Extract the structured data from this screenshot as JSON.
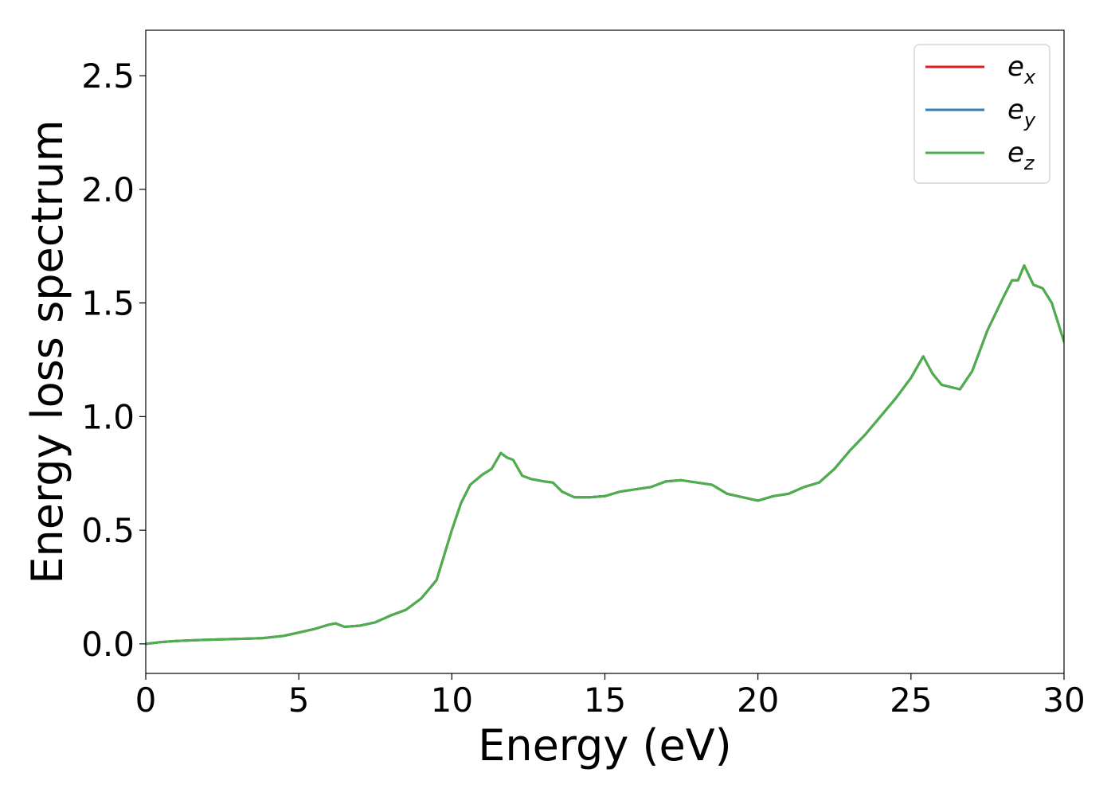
{
  "chart_data": {
    "type": "line",
    "xlabel": "Energy (eV)",
    "ylabel": "Energy loss spectrum",
    "xlim": [
      0,
      30
    ],
    "ylim": [
      -0.13,
      2.7
    ],
    "xticks": [
      0,
      5,
      10,
      15,
      20,
      25,
      30
    ],
    "yticks": [
      0.0,
      0.5,
      1.0,
      1.5,
      2.0,
      2.5
    ],
    "grid": false,
    "legend_position": "top-right",
    "series": [
      {
        "name": "e_x",
        "color": "#e41a1c",
        "x": [
          0,
          0.5,
          1,
          2,
          3,
          3.8,
          4.5,
          5,
          5.5,
          6,
          6.2,
          6.5,
          7,
          7.5,
          8,
          8.5,
          9,
          9.5,
          10,
          10.3,
          10.6,
          11,
          11.3,
          11.6,
          11.8,
          12,
          12.3,
          12.6,
          13,
          13.3,
          13.6,
          14,
          14.5,
          15,
          15.5,
          16,
          16.5,
          17,
          17.5,
          18,
          18.5,
          19,
          19.5,
          20,
          20.5,
          21,
          21.5,
          22,
          22.5,
          23,
          23.5,
          24,
          24.5,
          25,
          25.4,
          25.7,
          26,
          26.3,
          26.6,
          27,
          27.5,
          28,
          28.3,
          28.5,
          28.7,
          29,
          29.3,
          29.6,
          30
        ],
        "y": [
          0.0,
          0.008,
          0.013,
          0.018,
          0.022,
          0.025,
          0.035,
          0.05,
          0.065,
          0.085,
          0.09,
          0.075,
          0.08,
          0.095,
          0.125,
          0.15,
          0.2,
          0.28,
          0.5,
          0.62,
          0.7,
          0.745,
          0.77,
          0.84,
          0.82,
          0.81,
          0.74,
          0.725,
          0.715,
          0.71,
          0.67,
          0.645,
          0.645,
          0.65,
          0.67,
          0.68,
          0.69,
          0.715,
          0.72,
          0.71,
          0.7,
          0.66,
          0.645,
          0.63,
          0.65,
          0.66,
          0.69,
          0.71,
          0.77,
          0.85,
          0.92,
          1.0,
          1.08,
          1.17,
          1.265,
          1.19,
          1.14,
          1.13,
          1.12,
          1.2,
          1.38,
          1.52,
          1.6,
          1.6,
          1.665,
          1.58,
          1.565,
          1.5,
          1.33
        ]
      },
      {
        "name": "e_y",
        "color": "#377eb8",
        "x": [
          0,
          0.5,
          1,
          2,
          3,
          3.8,
          4.5,
          5,
          5.5,
          6,
          6.2,
          6.5,
          7,
          7.5,
          8,
          8.5,
          9,
          9.5,
          10,
          10.3,
          10.6,
          11,
          11.3,
          11.6,
          11.8,
          12,
          12.3,
          12.6,
          13,
          13.3,
          13.6,
          14,
          14.5,
          15,
          15.5,
          16,
          16.5,
          17,
          17.5,
          18,
          18.5,
          19,
          19.5,
          20,
          20.5,
          21,
          21.5,
          22,
          22.5,
          23,
          23.5,
          24,
          24.5,
          25,
          25.4,
          25.7,
          26,
          26.3,
          26.6,
          27,
          27.5,
          28,
          28.3,
          28.5,
          28.7,
          29,
          29.3,
          29.6,
          30
        ],
        "y": [
          0.0,
          0.008,
          0.013,
          0.018,
          0.022,
          0.025,
          0.035,
          0.05,
          0.065,
          0.085,
          0.09,
          0.075,
          0.08,
          0.095,
          0.125,
          0.15,
          0.2,
          0.28,
          0.5,
          0.62,
          0.7,
          0.745,
          0.77,
          0.84,
          0.82,
          0.81,
          0.74,
          0.725,
          0.715,
          0.71,
          0.67,
          0.645,
          0.645,
          0.65,
          0.67,
          0.68,
          0.69,
          0.715,
          0.72,
          0.71,
          0.7,
          0.66,
          0.645,
          0.63,
          0.65,
          0.66,
          0.69,
          0.71,
          0.77,
          0.85,
          0.92,
          1.0,
          1.08,
          1.17,
          1.265,
          1.19,
          1.14,
          1.13,
          1.12,
          1.2,
          1.38,
          1.52,
          1.6,
          1.6,
          1.665,
          1.58,
          1.565,
          1.5,
          1.33
        ]
      },
      {
        "name": "e_z",
        "color": "#4daf4a",
        "x": [
          0,
          0.5,
          1,
          2,
          3,
          3.8,
          4.5,
          5,
          5.5,
          6,
          6.2,
          6.5,
          7,
          7.5,
          8,
          8.5,
          9,
          9.5,
          10,
          10.3,
          10.6,
          11,
          11.3,
          11.6,
          11.8,
          12,
          12.3,
          12.6,
          13,
          13.3,
          13.6,
          14,
          14.5,
          15,
          15.5,
          16,
          16.5,
          17,
          17.5,
          18,
          18.5,
          19,
          19.5,
          20,
          20.5,
          21,
          21.5,
          22,
          22.5,
          23,
          23.5,
          24,
          24.5,
          25,
          25.4,
          25.7,
          26,
          26.3,
          26.6,
          27,
          27.5,
          28,
          28.3,
          28.5,
          28.7,
          29,
          29.3,
          29.6,
          30
        ],
        "y": [
          0.0,
          0.008,
          0.013,
          0.018,
          0.022,
          0.025,
          0.035,
          0.05,
          0.065,
          0.085,
          0.09,
          0.075,
          0.08,
          0.095,
          0.125,
          0.15,
          0.2,
          0.28,
          0.5,
          0.62,
          0.7,
          0.745,
          0.77,
          0.84,
          0.82,
          0.81,
          0.74,
          0.725,
          0.715,
          0.71,
          0.67,
          0.645,
          0.645,
          0.65,
          0.67,
          0.68,
          0.69,
          0.715,
          0.72,
          0.71,
          0.7,
          0.66,
          0.645,
          0.63,
          0.65,
          0.66,
          0.69,
          0.71,
          0.77,
          0.85,
          0.92,
          1.0,
          1.08,
          1.17,
          1.265,
          1.19,
          1.14,
          1.13,
          1.12,
          1.2,
          1.38,
          1.52,
          1.6,
          1.6,
          1.665,
          1.58,
          1.565,
          1.5,
          1.33
        ]
      }
    ],
    "legend": [
      {
        "base": "e",
        "sub": "x",
        "color": "#e41a1c"
      },
      {
        "base": "e",
        "sub": "y",
        "color": "#377eb8"
      },
      {
        "base": "e",
        "sub": "z",
        "color": "#4daf4a"
      }
    ]
  }
}
